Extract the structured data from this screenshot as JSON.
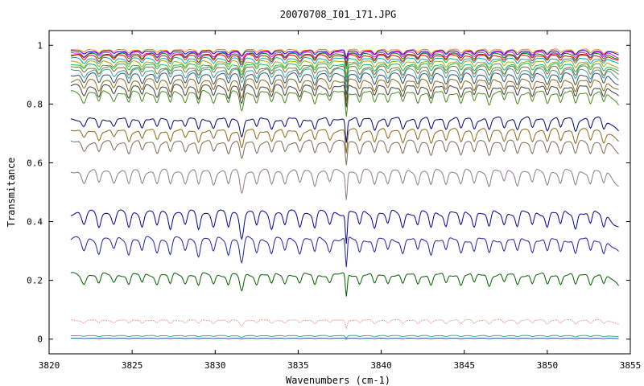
{
  "chart_data": {
    "type": "line",
    "title": "20070708_I01_171.JPG",
    "xlabel": "Wavenumbers (cm-1)",
    "ylabel": "Transmitance",
    "xlim": [
      3820,
      3855
    ],
    "ylim": [
      -0.05,
      1.05
    ],
    "xticks": [
      3820,
      3825,
      3830,
      3835,
      3840,
      3845,
      3850,
      3855
    ],
    "yticks": [
      0,
      0.2,
      0.4,
      0.6,
      0.8,
      1
    ],
    "x_range": [
      3821.3,
      3854.3
    ],
    "grid": false,
    "legend": "none",
    "series": [
      {
        "baseline": 0.985,
        "amplitude": 0.02,
        "color": "#ff7f00"
      },
      {
        "baseline": 0.98,
        "amplitude": 0.02,
        "color": "#0000ff"
      },
      {
        "baseline": 0.975,
        "amplitude": 0.025,
        "color": "#ff00ff"
      },
      {
        "baseline": 0.97,
        "amplitude": 0.025,
        "color": "#008000"
      },
      {
        "baseline": 0.965,
        "amplitude": 0.03,
        "color": "#ff0000"
      },
      {
        "baseline": 0.955,
        "amplitude": 0.03,
        "color": "#00aaaa"
      },
      {
        "baseline": 0.945,
        "amplitude": 0.035,
        "color": "#aaaa00"
      },
      {
        "baseline": 0.935,
        "amplitude": 0.035,
        "color": "#00c060"
      },
      {
        "baseline": 0.925,
        "amplitude": 0.04,
        "color": "#8a6d1c"
      },
      {
        "baseline": 0.915,
        "amplitude": 0.045,
        "color": "#3aa0a0"
      },
      {
        "baseline": 0.9,
        "amplitude": 0.05,
        "color": "#2f4f6f"
      },
      {
        "baseline": 0.88,
        "amplitude": 0.055,
        "color": "#8b6914"
      },
      {
        "baseline": 0.86,
        "amplitude": 0.06,
        "color": "#3c3c3c"
      },
      {
        "baseline": 0.84,
        "amplitude": 0.065,
        "color": "#4b8b1c"
      },
      {
        "baseline": 0.75,
        "amplitude": 0.06,
        "color": "#000080"
      },
      {
        "baseline": 0.71,
        "amplitude": 0.06,
        "color": "#8b6914"
      },
      {
        "baseline": 0.67,
        "amplitude": 0.06,
        "color": "#7b6b5b"
      },
      {
        "baseline": 0.57,
        "amplitude": 0.07,
        "color": "#8b7b8b"
      },
      {
        "baseline": 0.43,
        "amplitude": 0.08,
        "color": "#0000a0"
      },
      {
        "baseline": 0.34,
        "amplitude": 0.08,
        "color": "#2020b0"
      },
      {
        "baseline": 0.22,
        "amplitude": 0.06,
        "color": "#006000"
      },
      {
        "baseline": 0.065,
        "amplitude": 0.02,
        "color": "#e08080"
      },
      {
        "baseline": 0.012,
        "amplitude": 0.006,
        "color": "#20b0a0"
      },
      {
        "baseline": 0.003,
        "amplitude": 0.002,
        "color": "#3050a0"
      }
    ]
  }
}
